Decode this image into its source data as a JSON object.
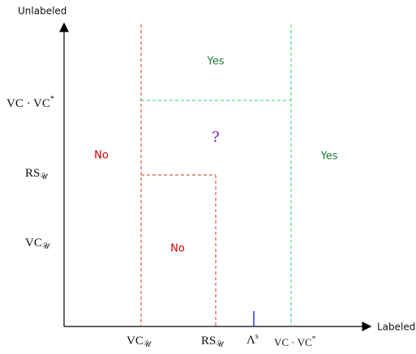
{
  "axes": {
    "x_title": "Labeled",
    "y_title": "Unlabeled"
  },
  "x_ticks": [
    {
      "label": "VCᵤ"
    },
    {
      "label": "RSᵤ"
    },
    {
      "label": "Λˢ"
    },
    {
      "label": "VC · VC*"
    }
  ],
  "x_ticks_display": {
    "vc_u_main": "VC",
    "vc_u_sub": "𝒰",
    "rs_u_main": "RS",
    "rs_u_sub": "𝒰",
    "lambda_main": "Λ",
    "lambda_sup": "s",
    "vcvc_main": "VC · VC",
    "vcvc_sup": "*"
  },
  "y_ticks_display": {
    "vcvc_main": "VC · VC",
    "vcvc_sup": "*",
    "rs_u_main": "RS",
    "rs_u_sub": "𝒰",
    "vc_u_main": "VC",
    "vc_u_sub": "𝒰"
  },
  "regions": {
    "yes_top": "Yes",
    "question": "?",
    "no_left": "No",
    "yes_right": "Yes",
    "no_inner": "No"
  },
  "colors": {
    "axis": "#000000",
    "boundary_red": "#c0392b",
    "boundary_green": "#2ecc71",
    "label_red": "#cc0000",
    "label_green": "#1e7a3c",
    "label_purple": "#7d1fb3",
    "marker_blue": "#1f3fd6"
  }
}
